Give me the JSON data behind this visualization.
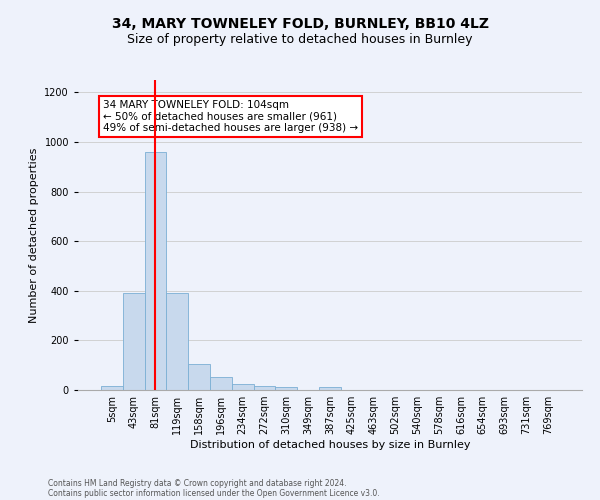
{
  "title": "34, MARY TOWNELEY FOLD, BURNLEY, BB10 4LZ",
  "subtitle": "Size of property relative to detached houses in Burnley",
  "xlabel": "Distribution of detached houses by size in Burnley",
  "ylabel": "Number of detached properties",
  "bar_color": "#c8d9ed",
  "bar_edge_color": "#7bafd4",
  "background_color": "#eef2fb",
  "categories": [
    "5sqm",
    "43sqm",
    "81sqm",
    "119sqm",
    "158sqm",
    "196sqm",
    "234sqm",
    "272sqm",
    "310sqm",
    "349sqm",
    "387sqm",
    "425sqm",
    "463sqm",
    "502sqm",
    "540sqm",
    "578sqm",
    "616sqm",
    "654sqm",
    "693sqm",
    "731sqm",
    "769sqm"
  ],
  "values": [
    15,
    390,
    960,
    390,
    105,
    52,
    25,
    15,
    12,
    0,
    13,
    0,
    0,
    0,
    0,
    0,
    0,
    0,
    0,
    0,
    0
  ],
  "property_line_x": 2,
  "ylim": [
    0,
    1250
  ],
  "yticks": [
    0,
    200,
    400,
    600,
    800,
    1000,
    1200
  ],
  "annotation_text": "34 MARY TOWNELEY FOLD: 104sqm\n← 50% of detached houses are smaller (961)\n49% of semi-detached houses are larger (938) →",
  "annotation_box_color": "white",
  "annotation_box_edge": "red",
  "footer_line1": "Contains HM Land Registry data © Crown copyright and database right 2024.",
  "footer_line2": "Contains public sector information licensed under the Open Government Licence v3.0.",
  "grid_color": "#cccccc",
  "title_fontsize": 10,
  "subtitle_fontsize": 9,
  "xlabel_fontsize": 8,
  "ylabel_fontsize": 8,
  "tick_fontsize": 7,
  "annot_fontsize": 7.5,
  "footer_fontsize": 5.5
}
